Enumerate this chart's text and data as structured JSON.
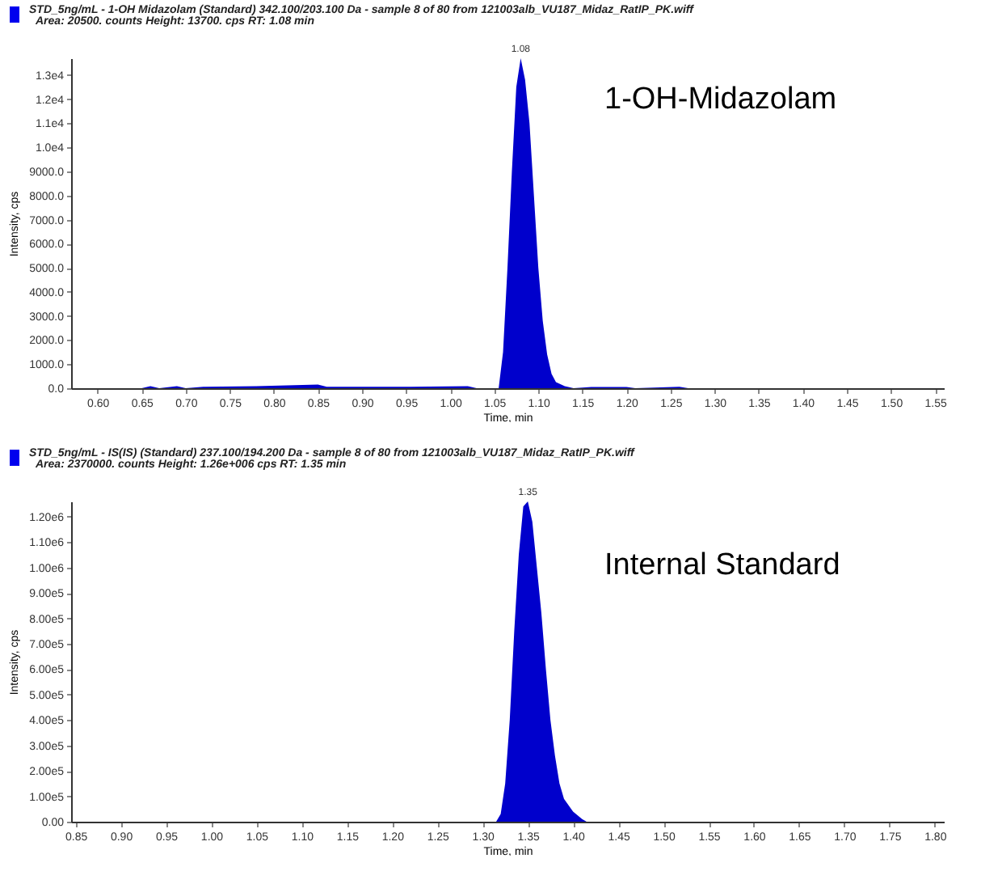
{
  "chart_data": [
    {
      "type": "area",
      "title": "STD_5ng/mL - 1-OH Midazolam (Standard) 342.100/203.100 Da - sample 8 of 80 from 121003alb_VU187_Midaz_RatIP_PK.wiff",
      "subtitle": "Area: 20500. counts  Height: 13700. cps  RT: 1.08 min",
      "xlabel": "Time, min",
      "ylabel": "Intensity, cps",
      "series": [
        {
          "color": "#0000cc",
          "x": [
            0.57,
            0.65,
            0.66,
            0.67,
            0.69,
            0.7,
            0.72,
            0.78,
            0.85,
            0.86,
            0.95,
            1.02,
            1.03,
            1.055,
            1.06,
            1.065,
            1.07,
            1.075,
            1.08,
            1.085,
            1.09,
            1.095,
            1.1,
            1.105,
            1.11,
            1.115,
            1.12,
            1.13,
            1.14,
            1.16,
            1.2,
            1.21,
            1.26,
            1.27,
            1.56
          ],
          "values": [
            0,
            0,
            80,
            0,
            80,
            0,
            60,
            80,
            150,
            60,
            60,
            80,
            0,
            0,
            1500,
            5000,
            9000,
            12500,
            13700,
            12800,
            11000,
            8000,
            5000,
            2800,
            1400,
            600,
            250,
            80,
            0,
            50,
            50,
            0,
            60,
            0,
            0
          ]
        }
      ],
      "xlim": [
        0.57,
        1.56
      ],
      "ylim": [
        0,
        13700
      ],
      "xticks": [
        {
          "value": 0.6,
          "label": "0.60"
        },
        {
          "value": 0.65,
          "label": "0.65"
        },
        {
          "value": 0.7,
          "label": "0.70"
        },
        {
          "value": 0.75,
          "label": "0.75"
        },
        {
          "value": 0.8,
          "label": "0.80"
        },
        {
          "value": 0.85,
          "label": "0.85"
        },
        {
          "value": 0.9,
          "label": "0.90"
        },
        {
          "value": 0.95,
          "label": "0.95"
        },
        {
          "value": 1.0,
          "label": "1.00"
        },
        {
          "value": 1.05,
          "label": "1.05"
        },
        {
          "value": 1.1,
          "label": "1.10"
        },
        {
          "value": 1.15,
          "label": "1.15"
        },
        {
          "value": 1.2,
          "label": "1.20"
        },
        {
          "value": 1.25,
          "label": "1.25"
        },
        {
          "value": 1.3,
          "label": "1.30"
        },
        {
          "value": 1.35,
          "label": "1.35"
        },
        {
          "value": 1.4,
          "label": "1.40"
        },
        {
          "value": 1.45,
          "label": "1.45"
        },
        {
          "value": 1.5,
          "label": "1.50"
        },
        {
          "value": 1.55,
          "label": "1.55"
        }
      ],
      "yticks": [
        {
          "value": 0,
          "label": "0.0"
        },
        {
          "value": 1000,
          "label": "1000.0"
        },
        {
          "value": 2000,
          "label": "2000.0"
        },
        {
          "value": 3000,
          "label": "3000.0"
        },
        {
          "value": 4000,
          "label": "4000.0"
        },
        {
          "value": 5000,
          "label": "5000.0"
        },
        {
          "value": 6000,
          "label": "6000.0"
        },
        {
          "value": 7000,
          "label": "7000.0"
        },
        {
          "value": 8000,
          "label": "8000.0"
        },
        {
          "value": 9000,
          "label": "9000.0"
        },
        {
          "value": 10000,
          "label": "1.0e4"
        },
        {
          "value": 11000,
          "label": "1.1e4"
        },
        {
          "value": 12000,
          "label": "1.2e4"
        },
        {
          "value": 13000,
          "label": "1.3e4"
        }
      ],
      "annotations": [
        {
          "text": "1.08",
          "x": 1.08,
          "y": 13700
        },
        "1-OH-Midazolam"
      ]
    },
    {
      "type": "area",
      "title": "STD_5ng/mL - IS(IS) (Standard) 237.100/194.200 Da - sample 8 of 80 from 121003alb_VU187_Midaz_RatIP_PK.wiff",
      "subtitle": "Area: 2370000. counts  Height: 1.26e+006 cps  RT: 1.35 min",
      "xlabel": "Time, min",
      "ylabel": "Intensity, cps",
      "series": [
        {
          "color": "#0000cc",
          "x": [
            0.845,
            1.315,
            1.32,
            1.325,
            1.33,
            1.335,
            1.34,
            1.345,
            1.35,
            1.355,
            1.36,
            1.365,
            1.37,
            1.375,
            1.38,
            1.385,
            1.39,
            1.4,
            1.41,
            1.415,
            1.81
          ],
          "values": [
            0,
            0,
            30000,
            150000,
            400000,
            750000,
            1050000,
            1240000,
            1260000,
            1180000,
            1000000,
            820000,
            600000,
            400000,
            260000,
            150000,
            90000,
            40000,
            10000,
            0,
            0
          ]
        }
      ],
      "xlim": [
        0.845,
        1.81
      ],
      "ylim": [
        0,
        1260000
      ],
      "xticks": [
        {
          "value": 0.85,
          "label": "0.85"
        },
        {
          "value": 0.9,
          "label": "0.90"
        },
        {
          "value": 0.95,
          "label": "0.95"
        },
        {
          "value": 1.0,
          "label": "1.00"
        },
        {
          "value": 1.05,
          "label": "1.05"
        },
        {
          "value": 1.1,
          "label": "1.10"
        },
        {
          "value": 1.15,
          "label": "1.15"
        },
        {
          "value": 1.2,
          "label": "1.20"
        },
        {
          "value": 1.25,
          "label": "1.25"
        },
        {
          "value": 1.3,
          "label": "1.30"
        },
        {
          "value": 1.35,
          "label": "1.35"
        },
        {
          "value": 1.4,
          "label": "1.40"
        },
        {
          "value": 1.45,
          "label": "1.45"
        },
        {
          "value": 1.5,
          "label": "1.50"
        },
        {
          "value": 1.55,
          "label": "1.55"
        },
        {
          "value": 1.6,
          "label": "1.60"
        },
        {
          "value": 1.65,
          "label": "1.65"
        },
        {
          "value": 1.7,
          "label": "1.70"
        },
        {
          "value": 1.75,
          "label": "1.75"
        },
        {
          "value": 1.8,
          "label": "1.80"
        }
      ],
      "yticks": [
        {
          "value": 0,
          "label": "0.00"
        },
        {
          "value": 100000,
          "label": "1.00e5"
        },
        {
          "value": 200000,
          "label": "2.00e5"
        },
        {
          "value": 300000,
          "label": "3.00e5"
        },
        {
          "value": 400000,
          "label": "4.00e5"
        },
        {
          "value": 500000,
          "label": "5.00e5"
        },
        {
          "value": 600000,
          "label": "6.00e5"
        },
        {
          "value": 700000,
          "label": "7.00e5"
        },
        {
          "value": 800000,
          "label": "8.00e5"
        },
        {
          "value": 900000,
          "label": "9.00e5"
        },
        {
          "value": 1000000,
          "label": "1.00e6"
        },
        {
          "value": 1100000,
          "label": "1.10e6"
        },
        {
          "value": 1200000,
          "label": "1.20e6"
        }
      ],
      "annotations": [
        {
          "text": "1.35",
          "x": 1.35,
          "y": 1260000
        },
        "Internal Standard"
      ]
    }
  ]
}
